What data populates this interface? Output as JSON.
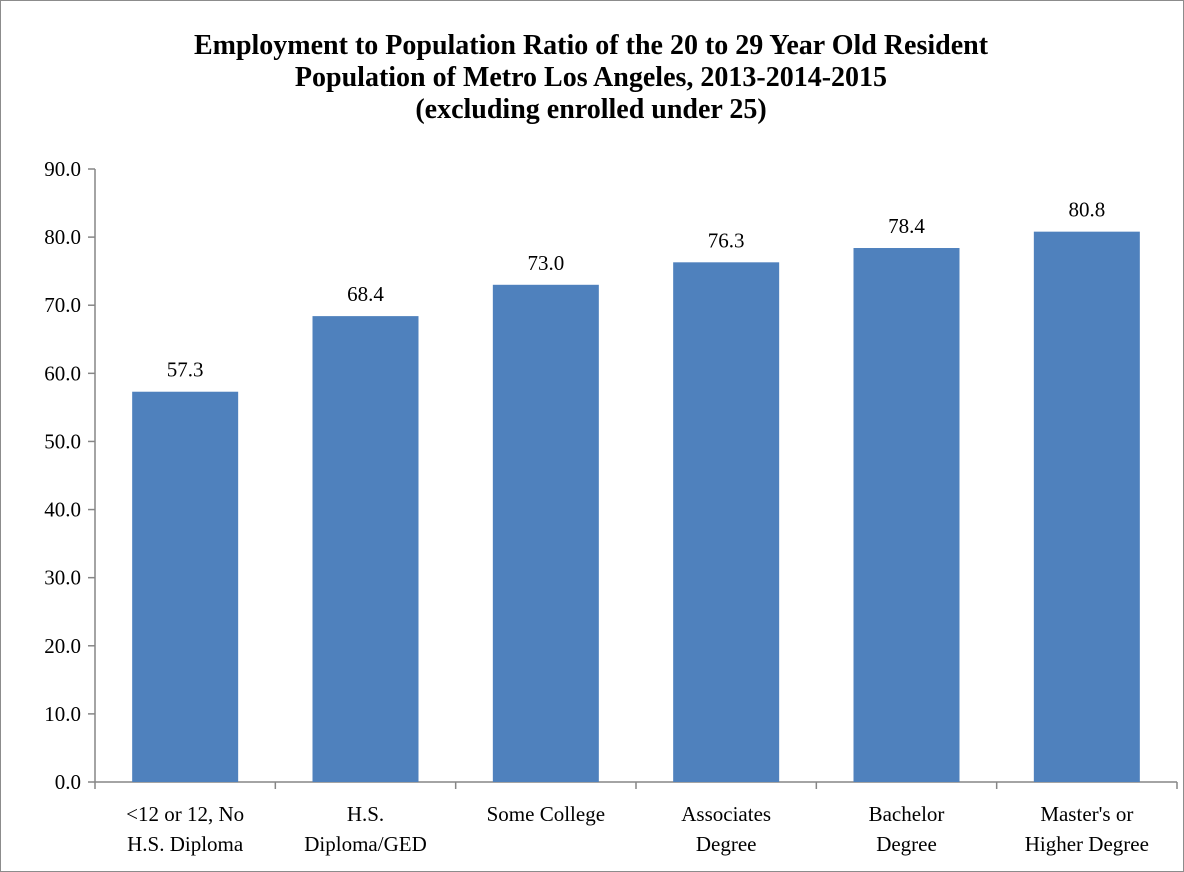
{
  "chart_data": {
    "type": "bar",
    "title_lines": [
      "Employment to Population Ratio of the 20 to 29 Year Old Resident",
      "Population of Metro Los Angeles, 2013-2014-2015",
      "(excluding enrolled under 25)"
    ],
    "categories": [
      [
        "<12 or 12, No",
        "H.S. Diploma"
      ],
      [
        "H.S.",
        "Diploma/GED"
      ],
      [
        "Some College"
      ],
      [
        "Associates",
        "Degree"
      ],
      [
        "Bachelor",
        "Degree"
      ],
      [
        "Master's or",
        "Higher Degree"
      ]
    ],
    "values": [
      57.3,
      68.4,
      73.0,
      76.3,
      78.4,
      80.8
    ],
    "value_labels": [
      "57.3",
      "68.4",
      "73.0",
      "76.3",
      "78.4",
      "80.8"
    ],
    "ylim": [
      0,
      90
    ],
    "yticks": [
      0,
      10,
      20,
      30,
      40,
      50,
      60,
      70,
      80,
      90
    ],
    "ytick_labels": [
      "0.0",
      "10.0",
      "20.0",
      "30.0",
      "40.0",
      "50.0",
      "60.0",
      "70.0",
      "80.0",
      "90.0"
    ],
    "xlabel": "",
    "ylabel": "",
    "grid": false,
    "legend": "none",
    "bar_color": "#4f81bd",
    "axis_color": "#868686"
  }
}
